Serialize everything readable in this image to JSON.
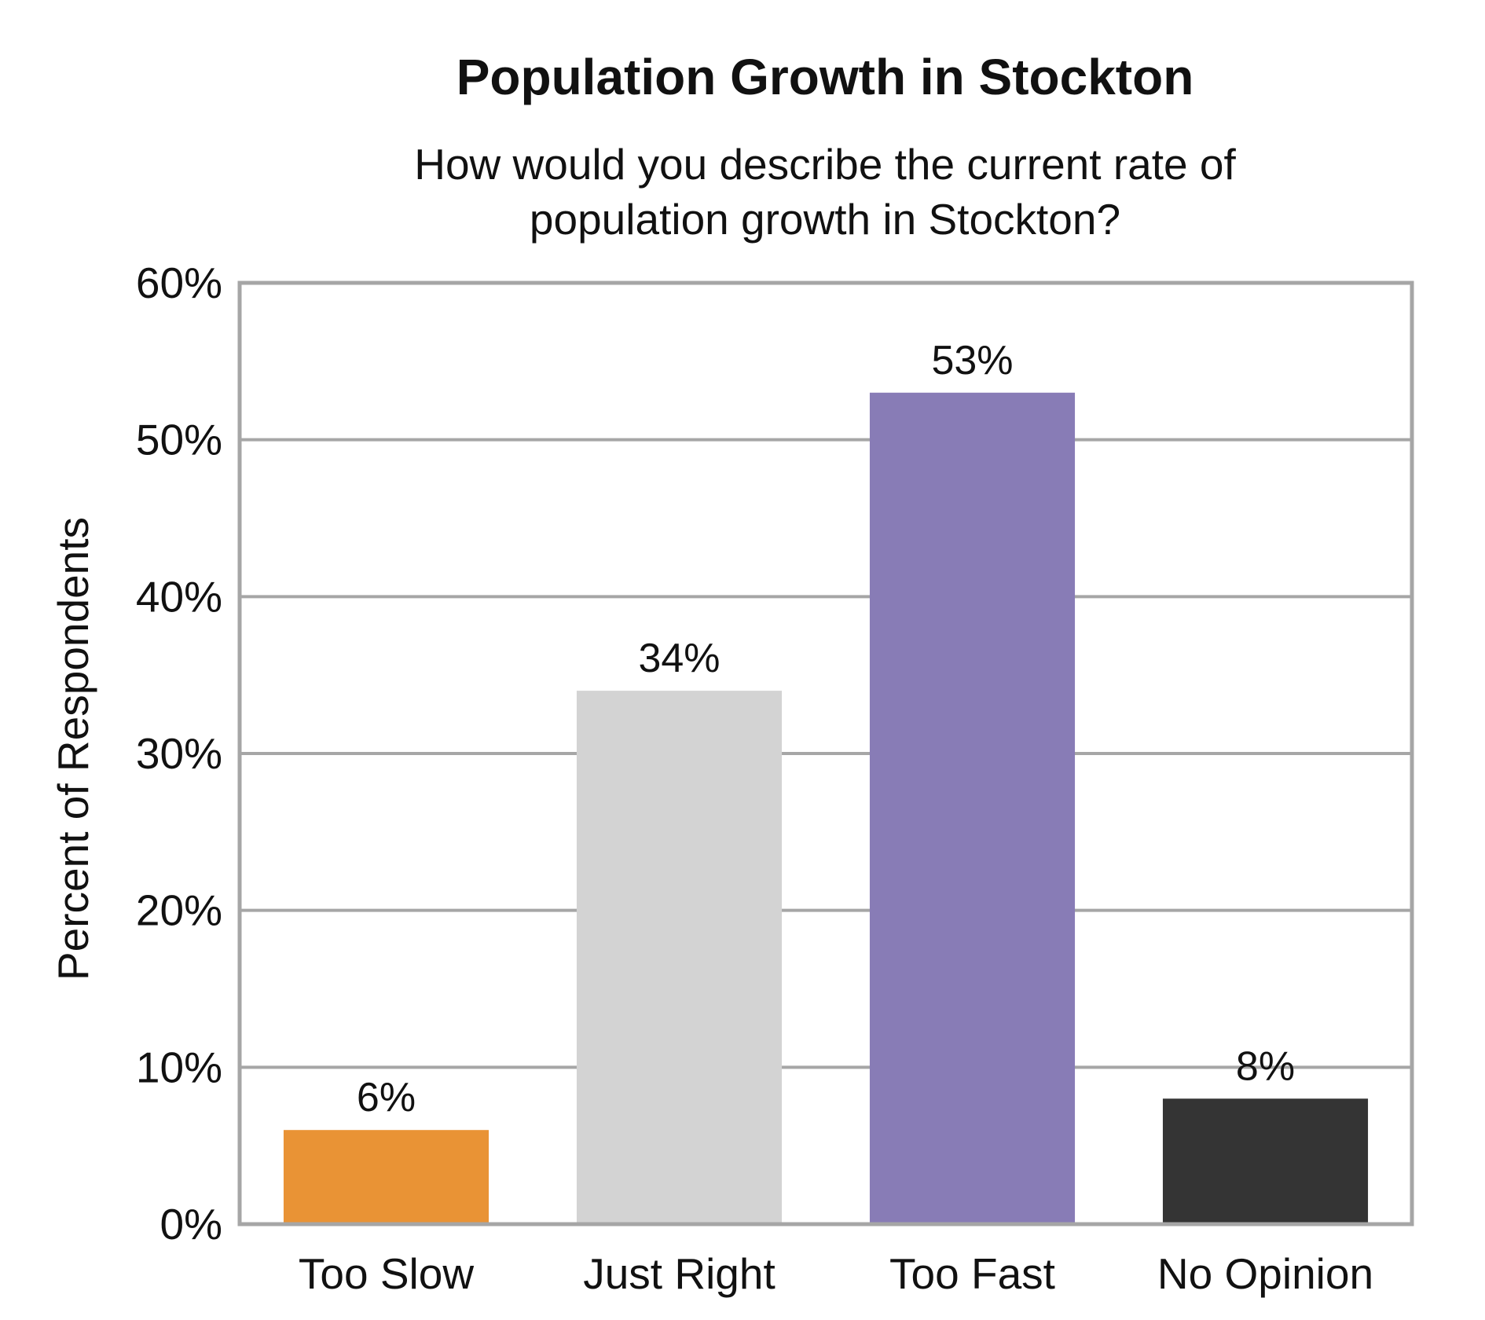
{
  "chart_data": {
    "type": "bar",
    "title": "Population Growth in Stockton",
    "subtitle_lines": [
      "How would you describe the current rate of",
      "population growth in Stockton?"
    ],
    "xlabel": "",
    "ylabel": "Percent of Respondents",
    "categories": [
      "Too Slow",
      "Just Right",
      "Too Fast",
      "No Opinion"
    ],
    "values": [
      6,
      34,
      53,
      8
    ],
    "data_labels": [
      "6%",
      "34%",
      "53%",
      "8%"
    ],
    "colors": [
      "#E99335",
      "#D3D3D3",
      "#887CB6",
      "#343434"
    ],
    "ylim": [
      0,
      60
    ],
    "yticks": [
      0,
      10,
      20,
      30,
      40,
      50,
      60
    ],
    "ytick_labels": [
      "0%",
      "10%",
      "20%",
      "30%",
      "40%",
      "50%",
      "60%"
    ],
    "grid": true,
    "grid_color": "#A6A6A6",
    "frame_color": "#A6A6A6",
    "legend": "none"
  }
}
